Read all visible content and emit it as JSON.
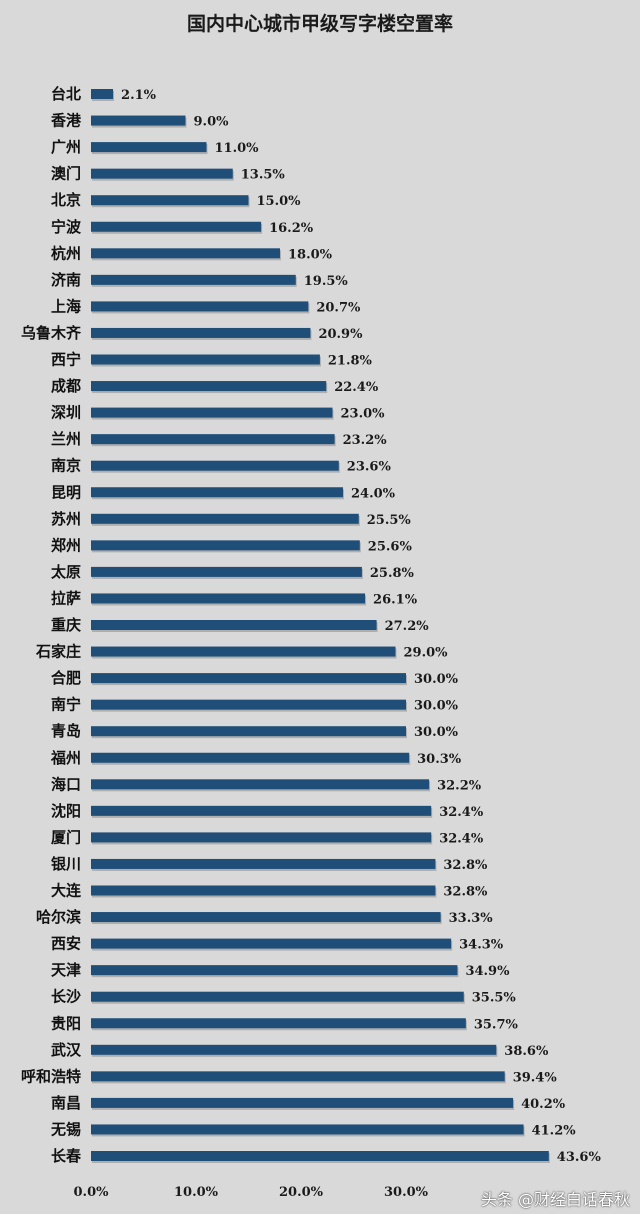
{
  "chart_data": {
    "type": "bar",
    "orientation": "horizontal",
    "title": "国内中心城市甲级写字楼空置率",
    "categories": [
      "台北",
      "香港",
      "广州",
      "澳门",
      "北京",
      "宁波",
      "杭州",
      "济南",
      "上海",
      "乌鲁木齐",
      "西宁",
      "成都",
      "深圳",
      "兰州",
      "南京",
      "昆明",
      "苏州",
      "郑州",
      "太原",
      "拉萨",
      "重庆",
      "石家庄",
      "合肥",
      "南宁",
      "青岛",
      "福州",
      "海口",
      "沈阳",
      "厦门",
      "银川",
      "大连",
      "哈尔滨",
      "西安",
      "天津",
      "长沙",
      "贵阳",
      "武汉",
      "呼和浩特",
      "南昌",
      "无锡",
      "长春"
    ],
    "values": [
      2.1,
      9.0,
      11.0,
      13.5,
      15.0,
      16.2,
      18.0,
      19.5,
      20.7,
      20.9,
      21.8,
      22.4,
      23.0,
      23.2,
      23.6,
      24.0,
      25.5,
      25.6,
      25.8,
      26.1,
      27.2,
      29.0,
      30.0,
      30.0,
      30.0,
      30.3,
      32.2,
      32.4,
      32.4,
      32.8,
      32.8,
      33.3,
      34.3,
      34.9,
      35.5,
      35.7,
      38.6,
      39.4,
      40.2,
      41.2,
      43.6
    ],
    "value_labels": [
      "2.1%",
      "9.0%",
      "11.0%",
      "13.5%",
      "15.0%",
      "16.2%",
      "18.0%",
      "19.5%",
      "20.7%",
      "20.9%",
      "21.8%",
      "22.4%",
      "23.0%",
      "23.2%",
      "23.6%",
      "24.0%",
      "25.5%",
      "25.6%",
      "25.8%",
      "26.1%",
      "27.2%",
      "29.0%",
      "30.0%",
      "30.0%",
      "30.0%",
      "30.3%",
      "32.2%",
      "32.4%",
      "32.4%",
      "32.8%",
      "32.8%",
      "33.3%",
      "34.3%",
      "34.9%",
      "35.5%",
      "35.7%",
      "38.6%",
      "39.4%",
      "40.2%",
      "41.2%",
      "43.6%"
    ],
    "x_ticks": [
      "0.0%",
      "10.0%",
      "20.0%",
      "30.0%"
    ],
    "xlim": [
      0,
      50
    ],
    "bar_color": "#1f4e79",
    "background_color": "#d9d9d9",
    "grid": false,
    "legend": "none"
  },
  "watermark": "头条 @财经白话春秋"
}
